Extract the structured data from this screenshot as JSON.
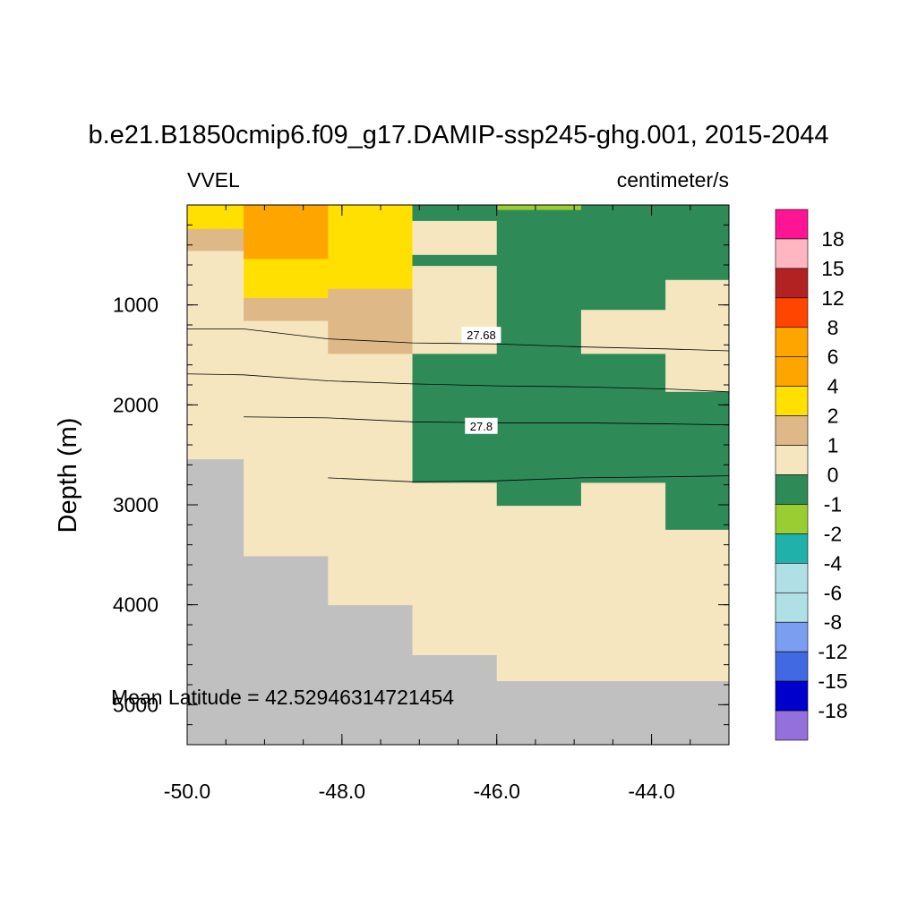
{
  "chart_data": {
    "type": "heatmap",
    "title": "b.e21.B1850cmip6.f09_g17.DAMIP-ssp245-ghg.001, 2015-2044",
    "left_label": "VVEL",
    "right_label": "centimeter/s",
    "ylabel": "Depth (m)",
    "xlabel": "",
    "annotation": "Mean Latitude = 42.52946314721454",
    "xlim": [
      -50.0,
      -43.0
    ],
    "ylim": [
      5400,
      0
    ],
    "x_ticks": [
      -50.0,
      -48.0,
      -46.0,
      -44.0
    ],
    "x_tick_labels": [
      "-50.0",
      "-48.0",
      "-46.0",
      "-44.0"
    ],
    "y_ticks": [
      1000,
      2000,
      3000,
      4000,
      5000
    ],
    "y_tick_labels": [
      "1000",
      "2000",
      "3000",
      "4000",
      "5000"
    ],
    "colorbar": {
      "labels": [
        "18",
        "15",
        "12",
        "8",
        "6",
        "4",
        "2",
        "1",
        "0",
        "-1",
        "-2",
        "-4",
        "-6",
        "-8",
        "-12",
        "-15",
        "-18"
      ],
      "colors": [
        "#ff1493",
        "#ffb6c1",
        "#b22222",
        "#ff4500",
        "#ffa500",
        "#ffa500",
        "#ffe000",
        "#deb887",
        "#f5e6c0",
        "#2e8b57",
        "#9acd32",
        "#20b2aa",
        "#b0e0e6",
        "#b0e0e6",
        "#7b9ff0",
        "#4169e1",
        "#0000cd",
        "#9370db"
      ]
    },
    "land_color": "#c0c0c0",
    "cells": [
      {
        "x": [
          -50.0,
          -49.27
        ],
        "y": [
          0,
          110
        ],
        "c": "#ffe000"
      },
      {
        "x": [
          -50.0,
          -49.27
        ],
        "y": [
          110,
          240
        ],
        "c": "#ffe000"
      },
      {
        "x": [
          -50.0,
          -49.27
        ],
        "y": [
          240,
          460
        ],
        "c": "#deb887"
      },
      {
        "x": [
          -50.0,
          -49.27
        ],
        "y": [
          460,
          2540
        ],
        "c": "#f5e6c0"
      },
      {
        "x": [
          -49.27,
          -48.18
        ],
        "y": [
          0,
          540
        ],
        "c": "#ffa500"
      },
      {
        "x": [
          -49.27,
          -48.18
        ],
        "y": [
          540,
          930
        ],
        "c": "#ffe000"
      },
      {
        "x": [
          -49.27,
          -48.18
        ],
        "y": [
          930,
          1160
        ],
        "c": "#deb887"
      },
      {
        "x": [
          -49.27,
          -48.18
        ],
        "y": [
          1160,
          3510
        ],
        "c": "#f5e6c0"
      },
      {
        "x": [
          -48.18,
          -47.09
        ],
        "y": [
          0,
          840
        ],
        "c": "#ffe000"
      },
      {
        "x": [
          -48.18,
          -47.09
        ],
        "y": [
          840,
          1490
        ],
        "c": "#deb887"
      },
      {
        "x": [
          -48.18,
          -47.09
        ],
        "y": [
          1490,
          4000
        ],
        "c": "#f5e6c0"
      },
      {
        "x": [
          -47.09,
          -46.0
        ],
        "y": [
          0,
          160
        ],
        "c": "#2e8b57"
      },
      {
        "x": [
          -47.09,
          -46.0
        ],
        "y": [
          160,
          500
        ],
        "c": "#f5e6c0"
      },
      {
        "x": [
          -47.09,
          -46.0
        ],
        "y": [
          500,
          610
        ],
        "c": "#2e8b57"
      },
      {
        "x": [
          -47.09,
          -46.0
        ],
        "y": [
          610,
          1490
        ],
        "c": "#f5e6c0"
      },
      {
        "x": [
          -47.09,
          -46.0
        ],
        "y": [
          1490,
          2780
        ],
        "c": "#2e8b57"
      },
      {
        "x": [
          -47.09,
          -46.0
        ],
        "y": [
          2780,
          4500
        ],
        "c": "#f5e6c0"
      },
      {
        "x": [
          -46.0,
          -44.91
        ],
        "y": [
          0,
          50
        ],
        "c": "#9acd32"
      },
      {
        "x": [
          -46.0,
          -44.91
        ],
        "y": [
          50,
          3010
        ],
        "c": "#2e8b57"
      },
      {
        "x": [
          -46.0,
          -44.91
        ],
        "y": [
          3010,
          4760
        ],
        "c": "#f5e6c0"
      },
      {
        "x": [
          -44.91,
          -43.82
        ],
        "y": [
          0,
          1050
        ],
        "c": "#2e8b57"
      },
      {
        "x": [
          -44.91,
          -43.82
        ],
        "y": [
          1050,
          1490
        ],
        "c": "#f5e6c0"
      },
      {
        "x": [
          -44.91,
          -43.82
        ],
        "y": [
          1490,
          2780
        ],
        "c": "#2e8b57"
      },
      {
        "x": [
          -44.91,
          -43.82
        ],
        "y": [
          2780,
          4760
        ],
        "c": "#f5e6c0"
      },
      {
        "x": [
          -43.82,
          -43.0
        ],
        "y": [
          0,
          750
        ],
        "c": "#2e8b57"
      },
      {
        "x": [
          -43.82,
          -43.0
        ],
        "y": [
          750,
          1870
        ],
        "c": "#f5e6c0"
      },
      {
        "x": [
          -43.82,
          -43.0
        ],
        "y": [
          1870,
          3250
        ],
        "c": "#2e8b57"
      },
      {
        "x": [
          -43.82,
          -43.0
        ],
        "y": [
          3250,
          4760
        ],
        "c": "#f5e6c0"
      }
    ],
    "land": [
      {
        "x": [
          -50.0,
          -49.27
        ],
        "y": [
          2540,
          5400
        ]
      },
      {
        "x": [
          -49.27,
          -48.18
        ],
        "y": [
          3510,
          5400
        ]
      },
      {
        "x": [
          -48.18,
          -47.09
        ],
        "y": [
          4000,
          5400
        ]
      },
      {
        "x": [
          -47.09,
          -46.0
        ],
        "y": [
          4500,
          5400
        ]
      },
      {
        "x": [
          -46.0,
          -43.0
        ],
        "y": [
          4760,
          5400
        ]
      }
    ],
    "contours": [
      {
        "label": "27.68",
        "label_pos": [
          -46.2,
          1300
        ],
        "points": [
          [
            -50.0,
            1240
          ],
          [
            -49.27,
            1240
          ],
          [
            -48.18,
            1340
          ],
          [
            -47.09,
            1380
          ],
          [
            -46.0,
            1390
          ],
          [
            -44.91,
            1420
          ],
          [
            -43.82,
            1440
          ],
          [
            -43.0,
            1460
          ]
        ]
      },
      {
        "label": "",
        "label_pos": null,
        "points": [
          [
            -50.0,
            1690
          ],
          [
            -49.27,
            1700
          ],
          [
            -48.18,
            1760
          ],
          [
            -47.09,
            1790
          ],
          [
            -46.0,
            1810
          ],
          [
            -44.91,
            1820
          ],
          [
            -43.82,
            1840
          ],
          [
            -43.0,
            1870
          ]
        ]
      },
      {
        "label": "27.8",
        "label_pos": [
          -46.2,
          2210
        ],
        "points": [
          [
            -49.27,
            2120
          ],
          [
            -48.18,
            2130
          ],
          [
            -47.09,
            2170
          ],
          [
            -46.0,
            2180
          ],
          [
            -44.91,
            2180
          ],
          [
            -43.82,
            2190
          ],
          [
            -43.0,
            2200
          ]
        ]
      },
      {
        "label": "",
        "label_pos": null,
        "points": [
          [
            -48.18,
            2730
          ],
          [
            -47.09,
            2770
          ],
          [
            -46.0,
            2760
          ],
          [
            -44.91,
            2730
          ],
          [
            -43.82,
            2720
          ],
          [
            -43.0,
            2710
          ]
        ]
      }
    ]
  }
}
